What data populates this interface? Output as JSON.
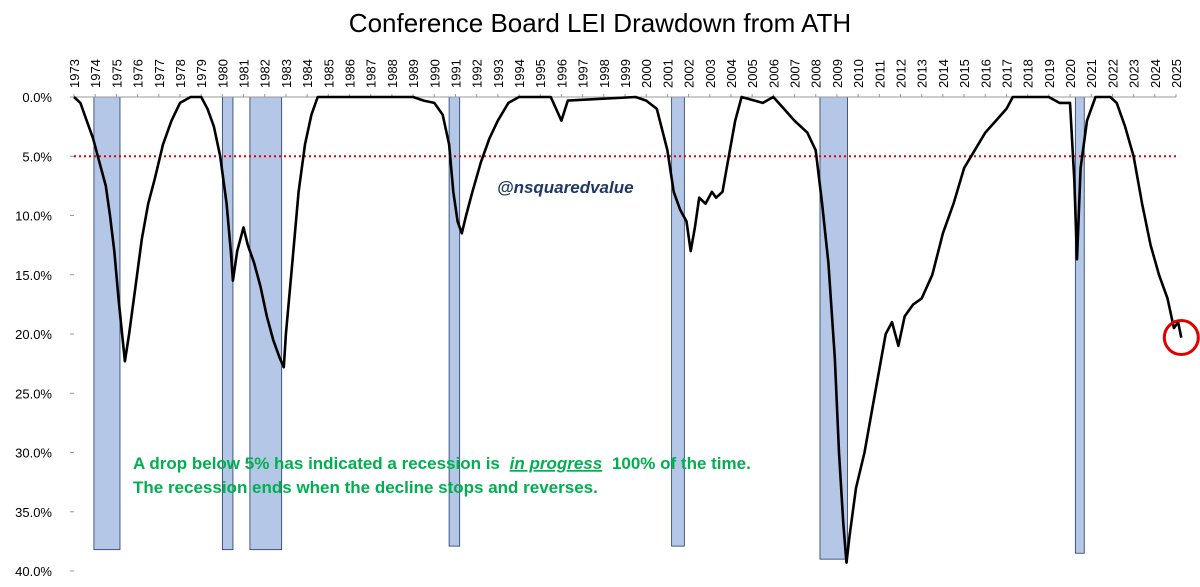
{
  "chart_data": {
    "type": "line",
    "title": "Conference Board LEI Drawdown from ATH",
    "watermark": "@nsquaredvalue",
    "annotation": {
      "line1": [
        "A drop below 5% has indicated a recession is",
        "in progress",
        "100% of the time."
      ],
      "line2": "The recession ends when the decline stops and reverses."
    },
    "xlim": [
      1973,
      2025
    ],
    "xticks": [
      1973,
      1974,
      1975,
      1976,
      1977,
      1978,
      1979,
      1980,
      1981,
      1982,
      1983,
      1984,
      1985,
      1986,
      1987,
      1988,
      1989,
      1990,
      1991,
      1992,
      1993,
      1994,
      1995,
      1996,
      1997,
      1998,
      1999,
      2000,
      2001,
      2002,
      2003,
      2004,
      2005,
      2006,
      2007,
      2008,
      2009,
      2010,
      2011,
      2012,
      2013,
      2014,
      2015,
      2016,
      2017,
      2018,
      2019,
      2020,
      2021,
      2022,
      2023,
      2024,
      2025
    ],
    "ylim": [
      0,
      40
    ],
    "y_inverted": true,
    "yticks": [
      {
        "value": 0,
        "label": "0.0%"
      },
      {
        "value": 5,
        "label": "5.0%"
      },
      {
        "value": 10,
        "label": "10.0%"
      },
      {
        "value": 15,
        "label": "15.0%"
      },
      {
        "value": 20,
        "label": "20.0%"
      },
      {
        "value": 25,
        "label": "25.0%"
      },
      {
        "value": 30,
        "label": "30.0%"
      },
      {
        "value": 35,
        "label": "35.0%"
      },
      {
        "value": 40,
        "label": "40.0%"
      }
    ],
    "threshold": {
      "value": 5,
      "color": "#e00000"
    },
    "recession_color": "#b4c7e7",
    "recessions": [
      {
        "start": 1973.94,
        "end": 1975.17,
        "bottom": 38.2
      },
      {
        "start": 1980.0,
        "end": 1980.5,
        "bottom": 38.2
      },
      {
        "start": 1981.3,
        "end": 1982.8,
        "bottom": 38.2
      },
      {
        "start": 1990.7,
        "end": 1991.2,
        "bottom": 37.9
      },
      {
        "start": 2001.2,
        "end": 2001.8,
        "bottom": 37.9
      },
      {
        "start": 2008.2,
        "end": 2009.5,
        "bottom": 39.0
      },
      {
        "start": 2020.25,
        "end": 2020.67,
        "bottom": 38.5
      }
    ],
    "highlight_last": {
      "color": "#e00000"
    },
    "series": [
      {
        "name": "LEI drawdown",
        "color": "#000000",
        "x": [
          1973.0,
          1973.3,
          1973.6,
          1973.9,
          1974.2,
          1974.5,
          1974.7,
          1974.9,
          1975.1,
          1975.3,
          1975.4,
          1975.6,
          1975.9,
          1976.2,
          1976.5,
          1976.8,
          1977.2,
          1977.6,
          1978.0,
          1978.5,
          1979.0,
          1979.3,
          1979.6,
          1979.9,
          1980.2,
          1980.4,
          1980.5,
          1980.7,
          1981.0,
          1981.2,
          1981.5,
          1981.8,
          1982.1,
          1982.4,
          1982.7,
          1982.9,
          1983.0,
          1983.3,
          1983.6,
          1983.9,
          1984.2,
          1984.5,
          1989.0,
          1989.5,
          1990.0,
          1990.4,
          1990.7,
          1990.9,
          1991.1,
          1991.3,
          1991.5,
          1991.8,
          1992.2,
          1992.6,
          1993.0,
          1993.5,
          1994.0,
          1995.5,
          1996.0,
          1996.3,
          1999.5,
          2000.0,
          2000.5,
          2001.0,
          2001.3,
          2001.6,
          2001.9,
          2002.1,
          2002.3,
          2002.5,
          2002.8,
          2003.1,
          2003.3,
          2003.6,
          2003.9,
          2004.2,
          2004.5,
          2005.5,
          2006.0,
          2006.5,
          2007.0,
          2007.6,
          2008.0,
          2008.3,
          2008.6,
          2008.9,
          2009.1,
          2009.3,
          2009.45,
          2009.6,
          2009.9,
          2010.3,
          2010.6,
          2011.0,
          2011.3,
          2011.6,
          2011.9,
          2012.2,
          2012.6,
          2013.0,
          2013.5,
          2014.0,
          2014.5,
          2015.0,
          2015.5,
          2016.0,
          2016.5,
          2017.0,
          2017.3,
          2019.0,
          2019.5,
          2020.0,
          2020.2,
          2020.33,
          2020.5,
          2020.8,
          2021.2,
          2021.9,
          2022.2,
          2022.6,
          2023.0,
          2023.4,
          2023.8,
          2024.2,
          2024.6,
          2024.9,
          2025.1,
          2025.25
        ],
        "values": [
          0,
          0.5,
          2,
          3.5,
          5.5,
          7.5,
          10,
          13,
          17,
          20.5,
          22.3,
          20,
          16,
          12,
          9,
          7,
          4,
          2,
          0.5,
          0,
          0,
          1,
          2.5,
          5,
          9,
          13,
          15.5,
          13,
          11,
          12.5,
          14,
          16,
          18.5,
          20.5,
          22,
          22.8,
          20,
          14,
          8,
          4,
          1.5,
          0,
          0,
          0.3,
          0.5,
          1.5,
          4,
          8,
          10.5,
          11.5,
          10,
          8,
          5.5,
          3.5,
          2,
          0.5,
          0,
          0,
          2,
          0.3,
          0,
          0.3,
          1,
          4.5,
          8,
          9.5,
          10.5,
          13,
          11,
          8.5,
          9,
          8,
          8.5,
          8,
          5,
          2,
          0,
          0.5,
          0,
          1,
          2,
          3,
          4.5,
          9,
          14,
          22,
          30,
          36,
          39.3,
          37,
          33,
          30,
          27,
          23,
          20,
          19,
          21,
          18.5,
          17.5,
          17,
          15,
          11.5,
          9,
          6,
          4.5,
          3,
          2,
          1,
          0,
          0,
          0.5,
          0.5,
          7,
          13.7,
          6,
          2,
          0,
          0,
          0.5,
          2.5,
          5,
          9,
          12.5,
          15,
          17,
          19.5,
          19,
          20.3
        ]
      }
    ]
  }
}
